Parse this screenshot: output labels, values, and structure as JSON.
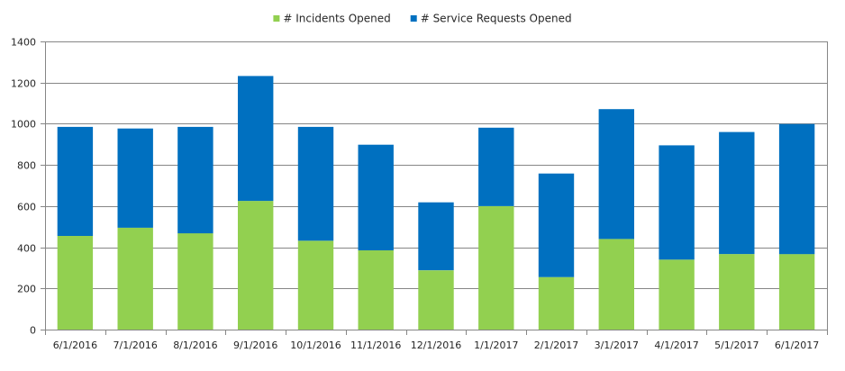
{
  "chart_data": {
    "type": "bar",
    "stacked": true,
    "categories": [
      "6/1/2016",
      "7/1/2016",
      "8/1/2016",
      "9/1/2016",
      "10/1/2016",
      "11/1/2016",
      "12/1/2016",
      "1/1/2017",
      "2/1/2017",
      "3/1/2017",
      "4/1/2017",
      "5/1/2017",
      "6/1/2017"
    ],
    "series": [
      {
        "name": "# Incidents Opened",
        "color": "#92d050",
        "values": [
          455,
          495,
          468,
          625,
          432,
          385,
          288,
          600,
          255,
          440,
          340,
          367,
          367
        ]
      },
      {
        "name": "# Service Requests Opened",
        "color": "#0070c0",
        "values": [
          530,
          482,
          517,
          607,
          553,
          513,
          330,
          381,
          503,
          631,
          555,
          593,
          632
        ]
      }
    ],
    "ylim": [
      0,
      1400
    ],
    "yticks": [
      0,
      200,
      400,
      600,
      800,
      1000,
      1200,
      1400
    ],
    "grid": true,
    "legend_position": "top"
  }
}
